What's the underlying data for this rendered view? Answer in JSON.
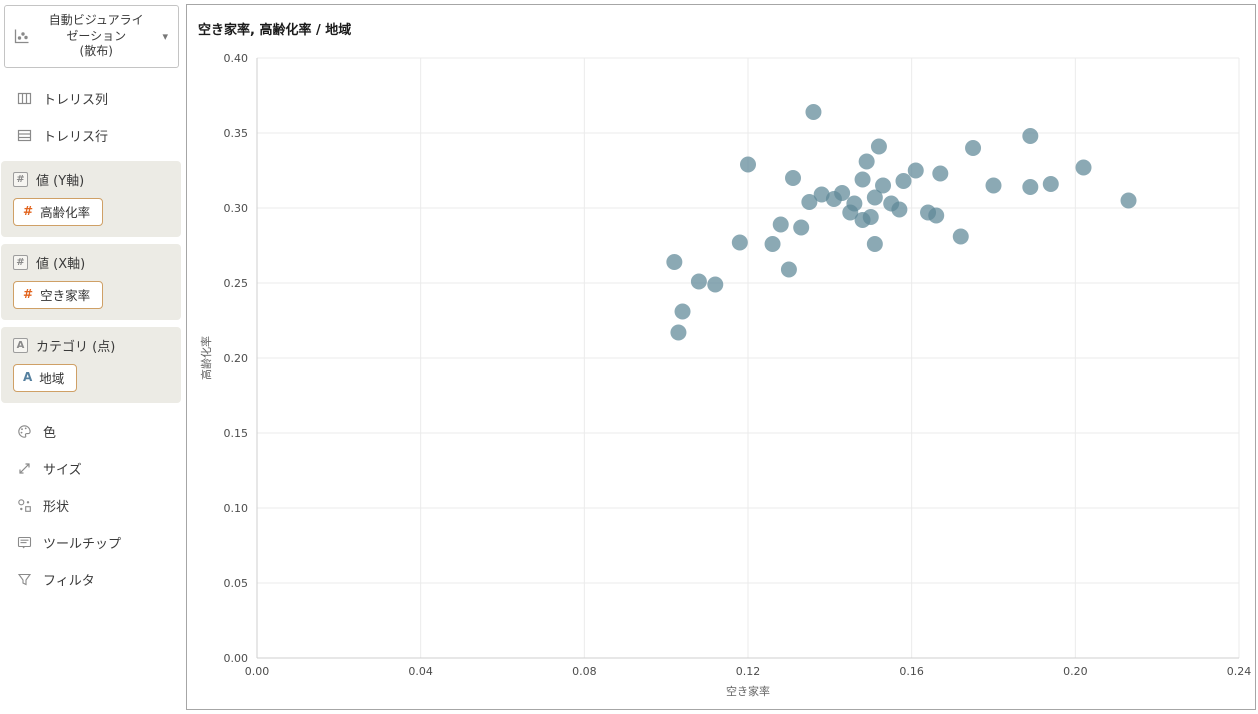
{
  "sidebar": {
    "auto_viz": {
      "line1": "自動ビジュアライ",
      "line2": "ゼーション",
      "line3": "(散布)"
    },
    "items_top": [
      {
        "label": "トレリス列",
        "icon": "trellis-columns-icon"
      },
      {
        "label": "トレリス行",
        "icon": "trellis-rows-icon"
      }
    ],
    "fields": [
      {
        "header": "値 (Y軸)",
        "header_icon": "numeric-hash-icon",
        "pill": "高齢化率",
        "pill_icon": "numeric-hash-icon"
      },
      {
        "header": "値 (X軸)",
        "header_icon": "numeric-hash-icon",
        "pill": "空き家率",
        "pill_icon": "numeric-hash-icon"
      },
      {
        "header": "カテゴリ (点)",
        "header_icon": "text-a-icon",
        "pill": "地域",
        "pill_icon": "text-a-icon"
      }
    ],
    "items_bottom": [
      {
        "label": "色",
        "icon": "color-palette-icon"
      },
      {
        "label": "サイズ",
        "icon": "size-icon"
      },
      {
        "label": "形状",
        "icon": "shape-icon"
      },
      {
        "label": "ツールチップ",
        "icon": "tooltip-icon"
      },
      {
        "label": "フィルタ",
        "icon": "filter-icon"
      }
    ],
    "hash_symbol": "#",
    "a_symbol": "A",
    "caret_symbol": "▾"
  },
  "chart_data": {
    "type": "scatter",
    "title": "空き家率, 高齢化率 / 地域",
    "xlabel": "空き家率",
    "ylabel": "高齢化率",
    "xlim": [
      0,
      0.24
    ],
    "ylim": [
      0,
      0.4
    ],
    "xticks": [
      0,
      0.04,
      0.08,
      0.12,
      0.16,
      0.2,
      0.24
    ],
    "yticks": [
      0,
      0.05,
      0.1,
      0.15,
      0.2,
      0.25,
      0.3,
      0.35,
      0.4
    ],
    "grid": true,
    "legend": false,
    "point_color": "#5e8897",
    "point_opacity": 0.72,
    "point_radius": 8,
    "points": [
      [
        0.136,
        0.364
      ],
      [
        0.189,
        0.348
      ],
      [
        0.152,
        0.341
      ],
      [
        0.175,
        0.34
      ],
      [
        0.12,
        0.329
      ],
      [
        0.149,
        0.331
      ],
      [
        0.202,
        0.327
      ],
      [
        0.161,
        0.325
      ],
      [
        0.167,
        0.323
      ],
      [
        0.131,
        0.32
      ],
      [
        0.148,
        0.319
      ],
      [
        0.18,
        0.315
      ],
      [
        0.189,
        0.314
      ],
      [
        0.194,
        0.316
      ],
      [
        0.153,
        0.315
      ],
      [
        0.213,
        0.305
      ],
      [
        0.138,
        0.309
      ],
      [
        0.135,
        0.304
      ],
      [
        0.141,
        0.306
      ],
      [
        0.143,
        0.31
      ],
      [
        0.151,
        0.307
      ],
      [
        0.155,
        0.303
      ],
      [
        0.157,
        0.299
      ],
      [
        0.166,
        0.295
      ],
      [
        0.145,
        0.297
      ],
      [
        0.15,
        0.294
      ],
      [
        0.164,
        0.297
      ],
      [
        0.148,
        0.292
      ],
      [
        0.128,
        0.289
      ],
      [
        0.133,
        0.287
      ],
      [
        0.172,
        0.281
      ],
      [
        0.118,
        0.277
      ],
      [
        0.126,
        0.276
      ],
      [
        0.151,
        0.276
      ],
      [
        0.13,
        0.259
      ],
      [
        0.102,
        0.264
      ],
      [
        0.108,
        0.251
      ],
      [
        0.112,
        0.249
      ],
      [
        0.104,
        0.231
      ],
      [
        0.103,
        0.217
      ],
      [
        0.146,
        0.303
      ],
      [
        0.158,
        0.318
      ]
    ]
  }
}
